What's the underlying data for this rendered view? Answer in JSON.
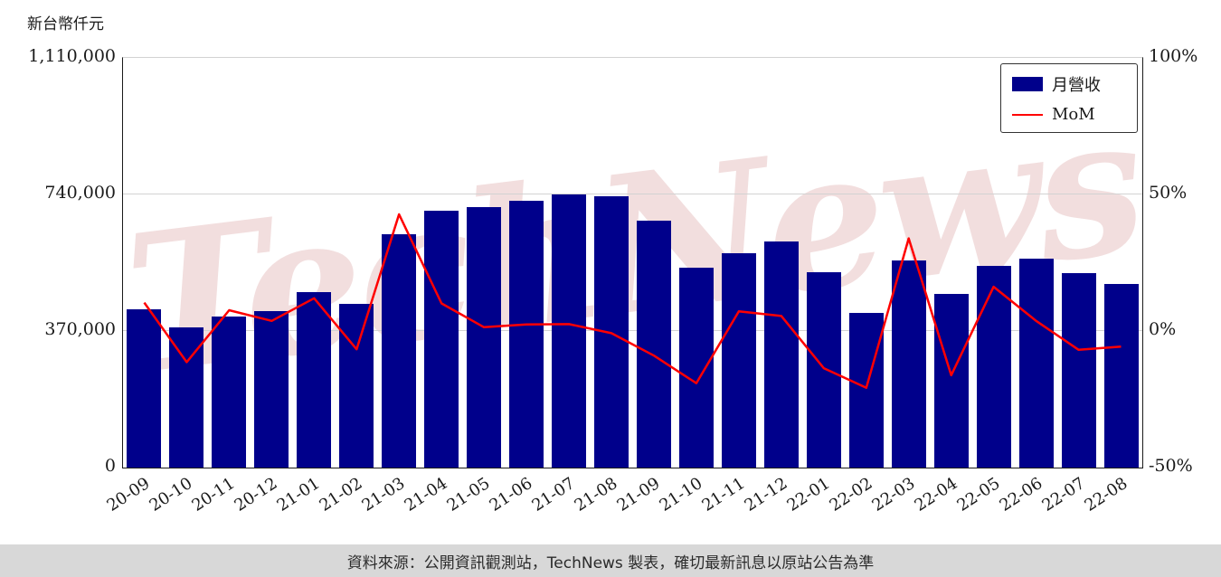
{
  "chart_data": {
    "type": "bar",
    "title": "",
    "watermark": "TechNews",
    "categories": [
      "20-09",
      "20-10",
      "20-11",
      "20-12",
      "21-01",
      "21-02",
      "21-03",
      "21-04",
      "21-05",
      "21-06",
      "21-07",
      "21-08",
      "21-09",
      "21-10",
      "21-11",
      "21-12",
      "22-01",
      "22-02",
      "22-03",
      "22-04",
      "22-05",
      "22-06",
      "22-07",
      "22-08"
    ],
    "series": [
      {
        "name": "月營收",
        "type": "bar",
        "axis": "left",
        "color": "#00008B",
        "values": [
          429000,
          380000,
          409000,
          424000,
          475000,
          443000,
          632000,
          696000,
          706000,
          723000,
          741000,
          735000,
          669000,
          541000,
          580000,
          612000,
          529000,
          419000,
          561000,
          470000,
          546000,
          566000,
          527000,
          497000
        ]
      },
      {
        "name": "MoM",
        "type": "line",
        "axis": "right",
        "color": "#FF0000",
        "values": [
          10.4,
          -11.4,
          7.6,
          3.7,
          12.0,
          -6.7,
          42.7,
          10.1,
          1.4,
          2.4,
          2.5,
          -0.8,
          -9.0,
          -19.1,
          7.2,
          5.5,
          -13.6,
          -20.8,
          33.9,
          -16.2,
          16.2,
          3.7,
          -6.9,
          -5.7
        ]
      }
    ],
    "y_left": {
      "unit_label": "新台幣仟元",
      "max": 1110000,
      "min": 0,
      "ticks": [
        0,
        370000,
        740000,
        1110000
      ],
      "tick_labels": [
        "0",
        "370,000",
        "740,000",
        "1,110,000"
      ]
    },
    "y_right": {
      "max": 100,
      "min": -50,
      "ticks": [
        -50,
        0,
        50,
        100
      ],
      "tick_labels": [
        "-50%",
        "0%",
        "50%",
        "100%"
      ]
    },
    "legend": {
      "position": "top-right",
      "entries": [
        "月營收",
        "MoM"
      ]
    },
    "grid": "horizontal"
  },
  "footer": {
    "text": "資料來源：公開資訊觀測站，TechNews 製表，確切最新訊息以原站公告為準"
  },
  "colors": {
    "bar": "#00008B",
    "line": "#FF0000",
    "grid": "#d2d2d2",
    "footer_bg": "#d8d8d8",
    "watermark": "#cc7e7e"
  }
}
